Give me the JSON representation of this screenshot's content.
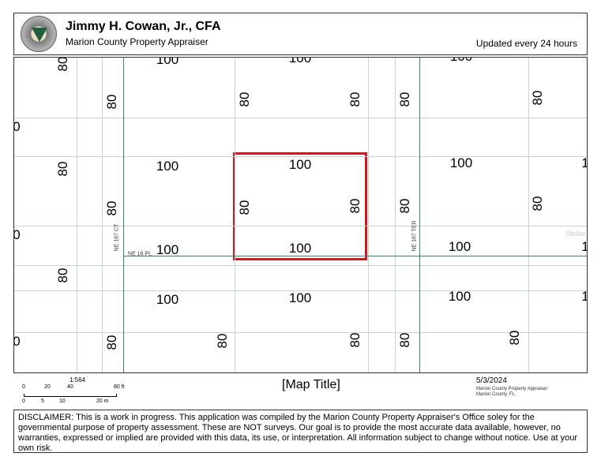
{
  "header": {
    "title": "Jimmy H. Cowan, Jr., CFA",
    "subtitle": "Marion County Property Appraiser",
    "updated": "Updated every 24 hours",
    "logo_text": "Property Appraiser"
  },
  "map": {
    "labels": [
      "100",
      "100",
      "100",
      "80",
      "80",
      "80",
      "80",
      "80",
      "80",
      "0",
      "80",
      "100",
      "100",
      "100",
      "1",
      "80",
      "80",
      "80",
      "80",
      "80",
      "0",
      "100",
      "100",
      "100",
      "1",
      "80",
      "100",
      "100",
      "100",
      "1",
      "80",
      "80",
      "80",
      "80",
      "80",
      "0"
    ],
    "streets": [
      "NE 167 CT",
      "NE 16 PL",
      "NE 167 TER"
    ],
    "watermark": "Stellar MLS",
    "selected_parcel_color": "#d0191f",
    "road_color": "#2e8b6e"
  },
  "footer": {
    "scale": "1:564",
    "ft_ticks": [
      "0",
      "20",
      "40",
      "80 ft"
    ],
    "m_ticks": [
      "0",
      "5",
      "10",
      "20 m"
    ],
    "map_title": "[Map Title]",
    "date": "5/3/2024",
    "source1": "Marion County Property Appraiser",
    "source2": "Marion County, FL"
  },
  "disclaimer": "DISCLAIMER: This is a work in progress. This application was compiled by the Marion County Property Appraiser's Office soley for the governmental purpose of property assessment. These are NOT surveys. Our goal is to provide the most accurate data available, however, no warranties, expressed or implied are provided with this data, its use, or interpretation. All information subject to change without notice. Use at your own risk."
}
